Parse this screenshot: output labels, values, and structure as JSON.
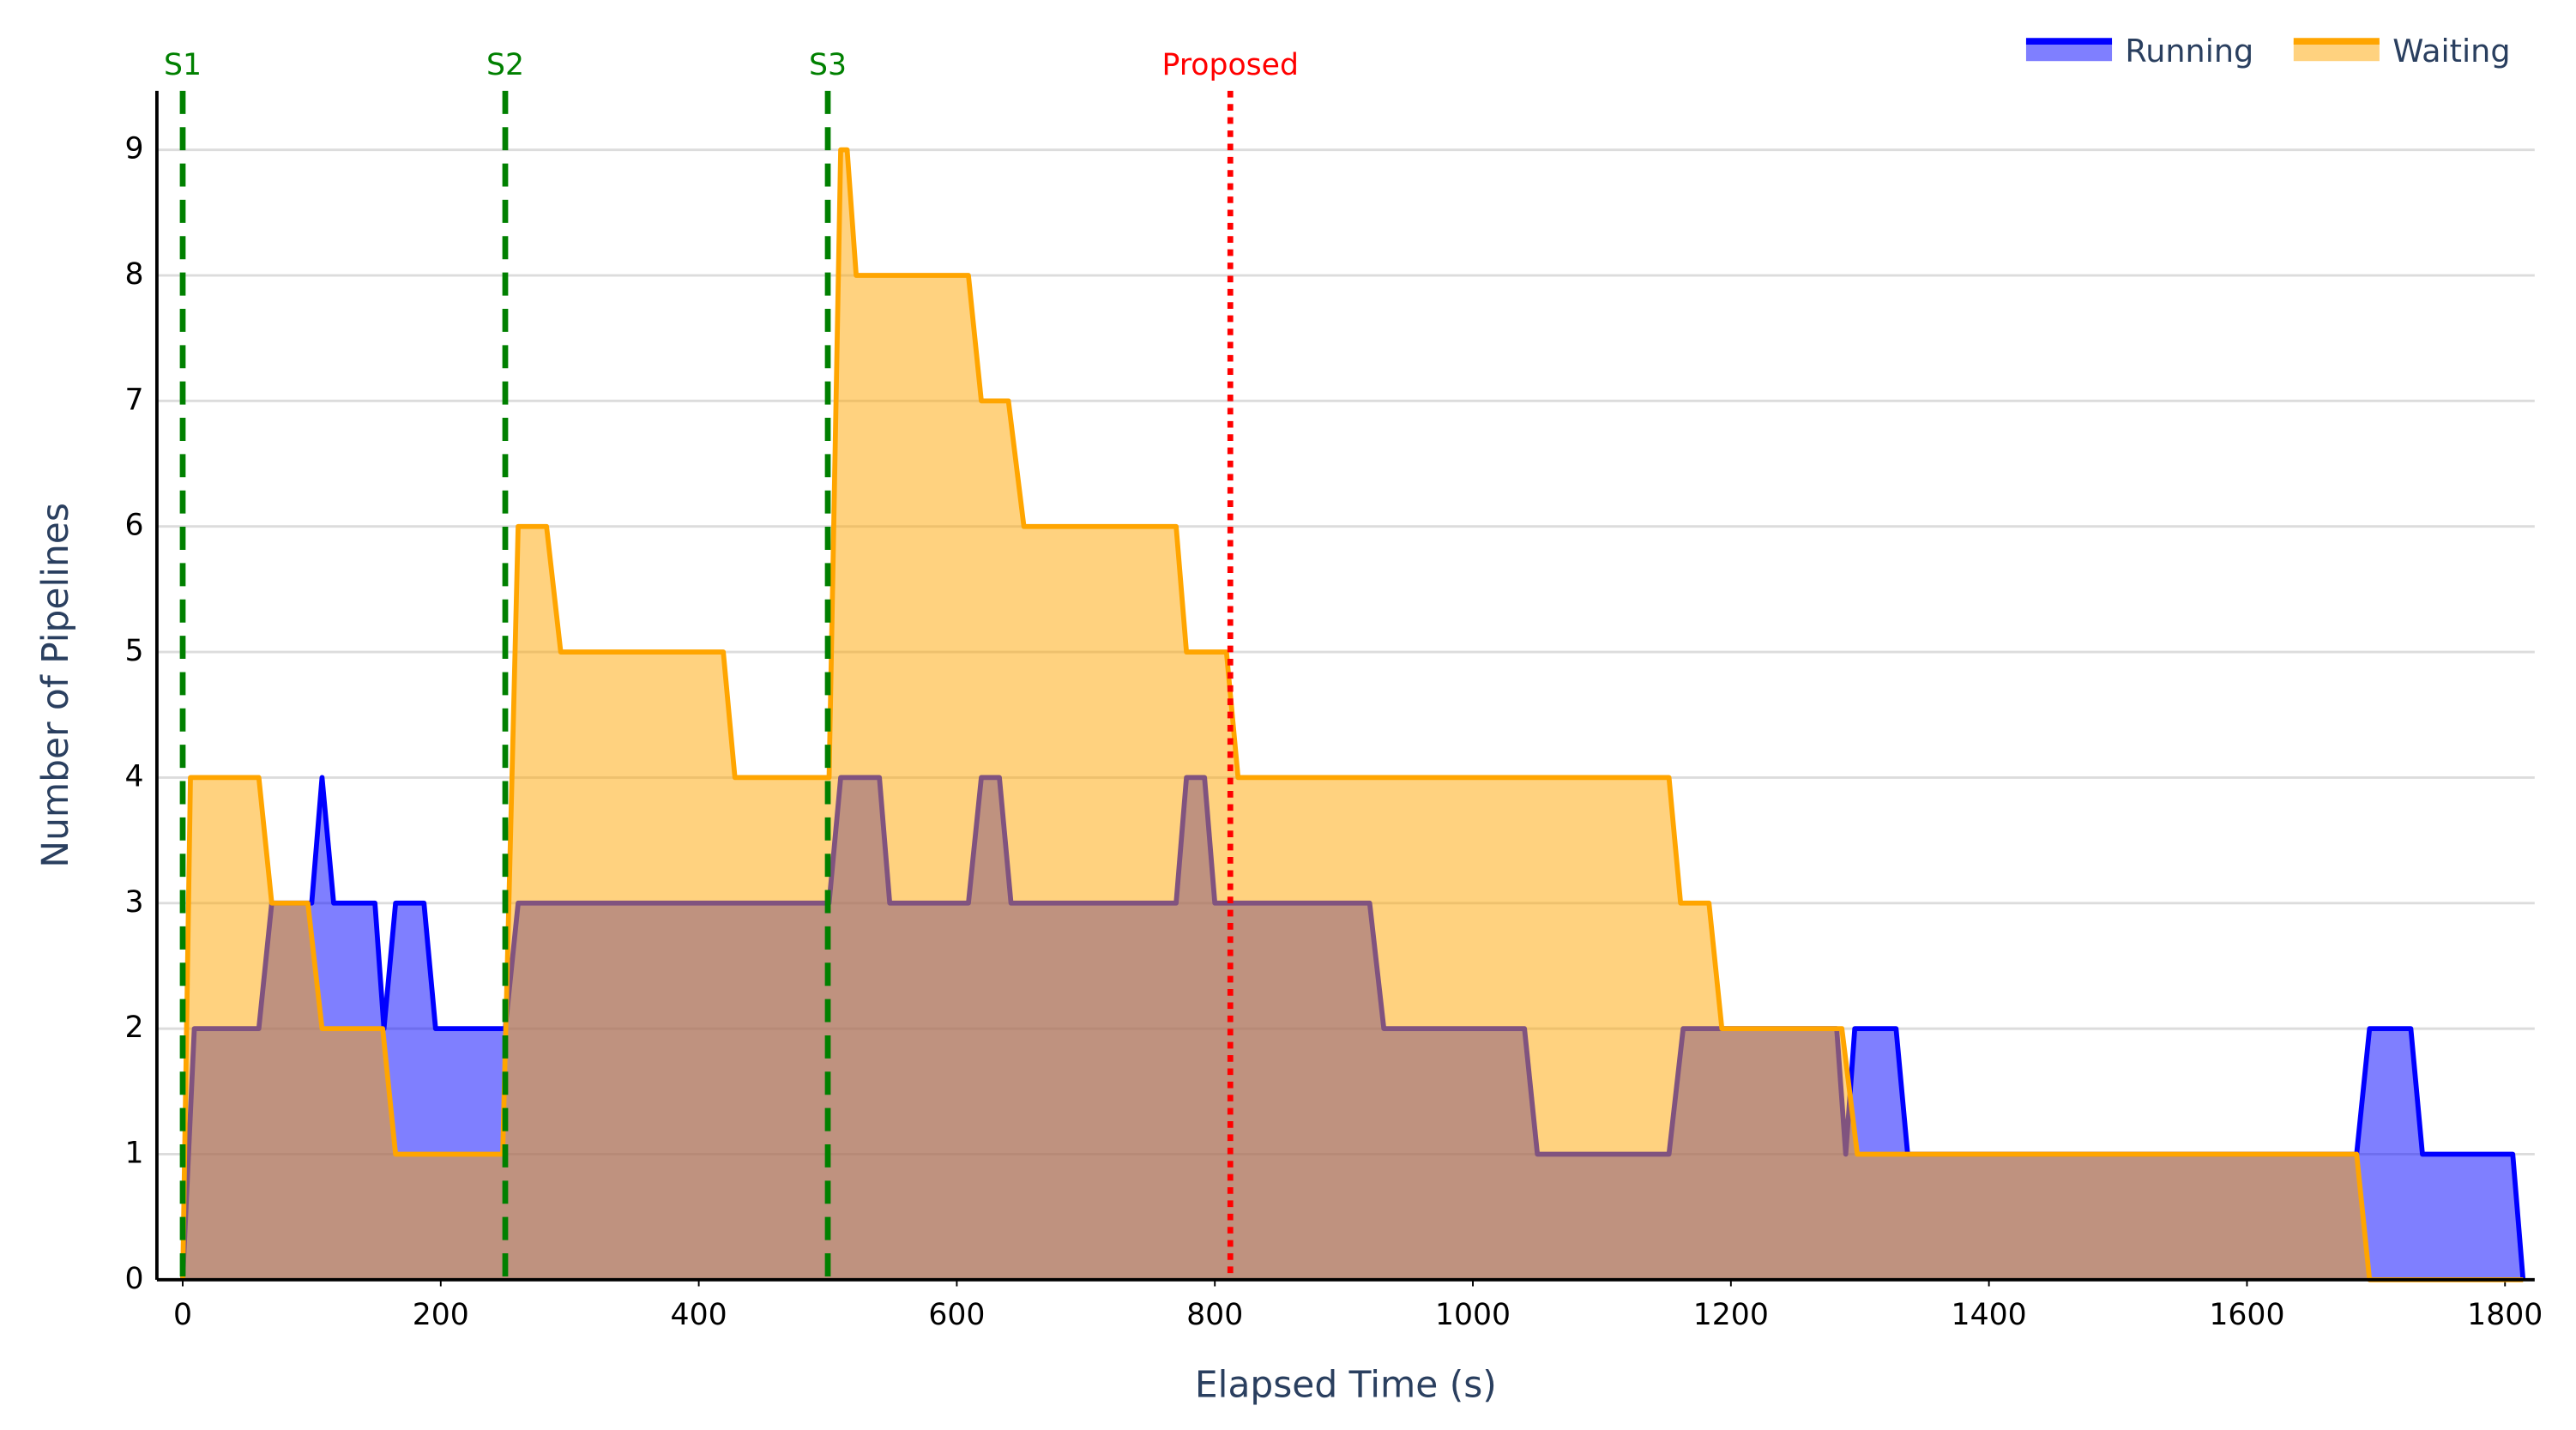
{
  "chart_data": {
    "type": "area",
    "xlabel": "Elapsed Time (s)",
    "ylabel": "Number of Pipelines",
    "xlim": [
      -20,
      1823
    ],
    "ylim": [
      0,
      9.47
    ],
    "xticks": [
      0,
      200,
      400,
      600,
      800,
      1000,
      1200,
      1400,
      1600,
      1800
    ],
    "yticks": [
      0,
      1,
      2,
      3,
      4,
      5,
      6,
      7,
      8,
      9
    ],
    "grid": true,
    "legend": "top-right",
    "series": [
      {
        "name": "Running",
        "color": "#0000ff",
        "x": [
          0,
          9,
          59,
          69,
          100,
          108,
          117,
          149,
          156,
          165,
          187,
          196,
          250,
          260,
          501,
          510,
          540,
          548,
          609,
          619,
          633,
          642,
          770,
          778,
          792,
          800,
          920,
          931,
          1040,
          1050,
          1152,
          1163,
          1282,
          1289,
          1296,
          1328,
          1337,
          1685,
          1695,
          1727,
          1736,
          1806,
          1814
        ],
        "values": [
          0,
          2,
          2,
          3,
          3,
          4,
          3,
          3,
          2,
          3,
          3,
          2,
          2,
          3,
          3,
          4,
          4,
          3,
          3,
          4,
          4,
          3,
          3,
          4,
          4,
          3,
          3,
          2,
          2,
          1,
          1,
          2,
          2,
          1,
          2,
          2,
          1,
          1,
          2,
          2,
          1,
          1,
          0
        ]
      },
      {
        "name": "Waiting",
        "color": "#ffa500",
        "x": [
          0,
          6,
          59,
          69,
          97,
          108,
          155,
          165,
          248,
          260,
          282,
          293,
          419,
          428,
          501,
          510,
          515,
          522,
          609,
          619,
          640,
          652,
          770,
          778,
          809,
          818,
          1152,
          1161,
          1183,
          1193,
          1286,
          1298,
          1685,
          1695,
          1814
        ],
        "values": [
          0,
          4,
          4,
          3,
          3,
          2,
          2,
          1,
          1,
          6,
          6,
          5,
          5,
          4,
          4,
          9,
          9,
          8,
          8,
          7,
          7,
          6,
          6,
          5,
          5,
          4,
          4,
          3,
          3,
          2,
          2,
          1,
          1,
          0,
          0
        ]
      }
    ],
    "vlines": [
      {
        "x": 0,
        "label": "S1",
        "color": "#008000",
        "style": "dashed"
      },
      {
        "x": 250,
        "label": "S2",
        "color": "#008000",
        "style": "dashed"
      },
      {
        "x": 500,
        "label": "S3",
        "color": "#008000",
        "style": "dashed"
      },
      {
        "x": 812,
        "label": "Proposed",
        "color": "#ff0000",
        "style": "dotted"
      }
    ]
  }
}
